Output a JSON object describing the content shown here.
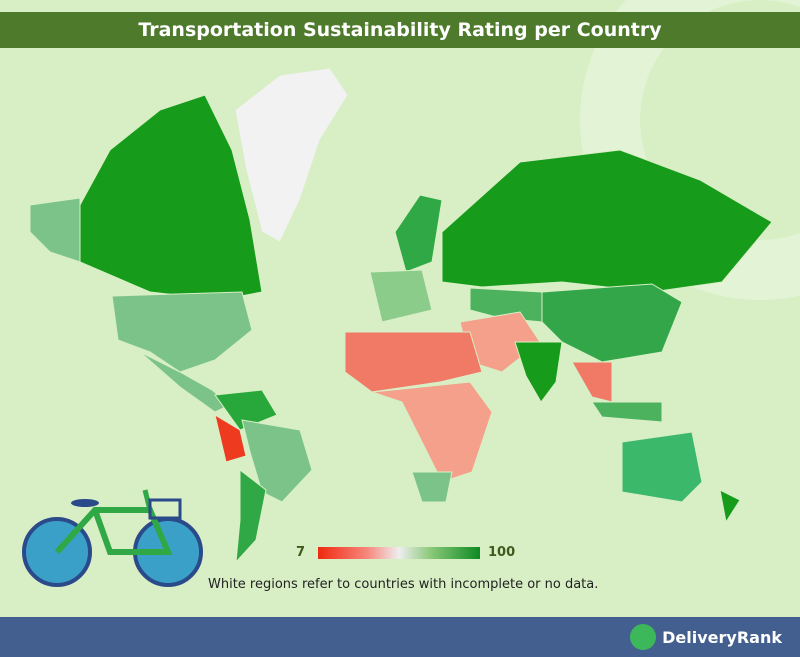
{
  "title": "Transportation Sustainability Rating per Country",
  "legend": {
    "min_label": "7",
    "max_label": "100",
    "min_value": 7,
    "max_value": 100,
    "colors": {
      "low": "#ee2a10",
      "mid_low": "#f7867a",
      "no_data": "#eeeeee",
      "mid_high": "#88c878",
      "high": "#0e8a23"
    }
  },
  "note": "White regions refer to countries with incomplete or no data.",
  "footer": {
    "brand": "DeliveryRank",
    "background": "#435f8f"
  },
  "colors": {
    "background": "#d8efc6",
    "title_bar": "#4e7a2c"
  }
}
